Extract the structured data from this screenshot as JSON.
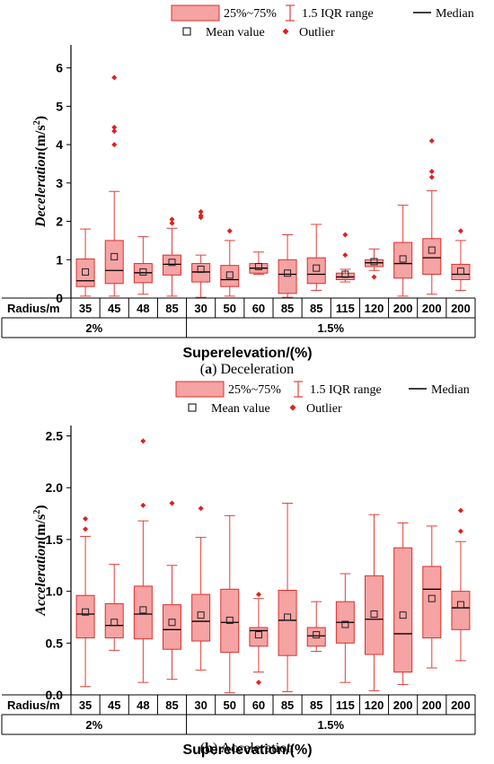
{
  "legend": {
    "box": "25%~75%",
    "iqr": "1.5 IQR range",
    "median": "Median",
    "mean": "Mean value",
    "outlier": "Outlier"
  },
  "colors": {
    "box_fill": "#f6a3a3",
    "box_stroke": "#d9302c",
    "whisker": "#e0403a",
    "outlier": "#e0201c",
    "median": "#000000"
  },
  "table": {
    "row_label": "Radius/m",
    "xlabel": "Superelevation/(%)"
  },
  "chart_data": [
    {
      "type": "box",
      "caption_letter": "a",
      "caption_text": "Deceleration",
      "ylabel_main": "Deceleration",
      "ylabel_unit": "(m/s",
      "ylabel_sup": "2",
      "ylabel_end": ")",
      "ylim": [
        0,
        6.6
      ],
      "yticks": [
        "0",
        "1",
        "2",
        "3",
        "4",
        "5",
        "6"
      ],
      "categories": [
        "35",
        "45",
        "48",
        "85",
        "30",
        "50",
        "60",
        "85",
        "85",
        "115",
        "120",
        "200",
        "200",
        "200"
      ],
      "groups": [
        {
          "label": "2%",
          "count": 4
        },
        {
          "label": "1.5%",
          "count": 10
        }
      ],
      "boxes": [
        {
          "min": 0.05,
          "q1": 0.3,
          "median": 0.45,
          "q3": 1.02,
          "max": 1.8,
          "mean": 0.68,
          "outliers": []
        },
        {
          "min": 0.05,
          "q1": 0.38,
          "median": 0.72,
          "q3": 1.5,
          "max": 2.78,
          "mean": 1.08,
          "outliers": [
            5.75,
            4.45,
            4.35,
            4.0
          ]
        },
        {
          "min": 0.1,
          "q1": 0.4,
          "median": 0.66,
          "q3": 0.9,
          "max": 1.6,
          "mean": 0.68,
          "outliers": []
        },
        {
          "min": 0.05,
          "q1": 0.6,
          "median": 0.88,
          "q3": 1.12,
          "max": 1.82,
          "mean": 0.93,
          "outliers": [
            2.05,
            1.95
          ]
        },
        {
          "min": 0.02,
          "q1": 0.42,
          "median": 0.68,
          "q3": 0.9,
          "max": 1.12,
          "mean": 0.75,
          "outliers": [
            2.25,
            2.15,
            2.1
          ]
        },
        {
          "min": 0.05,
          "q1": 0.3,
          "median": 0.48,
          "q3": 0.85,
          "max": 1.5,
          "mean": 0.6,
          "outliers": [
            1.75
          ]
        },
        {
          "min": 0.62,
          "q1": 0.65,
          "median": 0.78,
          "q3": 0.9,
          "max": 1.2,
          "mean": 0.82,
          "outliers": []
        },
        {
          "min": 0.02,
          "q1": 0.12,
          "median": 0.62,
          "q3": 1.0,
          "max": 1.65,
          "mean": 0.65,
          "outliers": []
        },
        {
          "min": 0.2,
          "q1": 0.38,
          "median": 0.62,
          "q3": 1.05,
          "max": 1.92,
          "mean": 0.78,
          "outliers": []
        },
        {
          "min": 0.42,
          "q1": 0.48,
          "median": 0.55,
          "q3": 0.65,
          "max": 0.75,
          "mean": 0.62,
          "outliers": [
            1.65,
            1.12
          ]
        },
        {
          "min": 0.72,
          "q1": 0.82,
          "median": 0.92,
          "q3": 1.0,
          "max": 1.28,
          "mean": 0.95,
          "outliers": [
            0.55
          ]
        },
        {
          "min": 0.05,
          "q1": 0.52,
          "median": 0.9,
          "q3": 1.45,
          "max": 2.42,
          "mean": 1.02,
          "outliers": []
        },
        {
          "min": 0.1,
          "q1": 0.62,
          "median": 1.05,
          "q3": 1.55,
          "max": 2.8,
          "mean": 1.25,
          "outliers": [
            4.1,
            3.3,
            3.15
          ]
        },
        {
          "min": 0.2,
          "q1": 0.48,
          "median": 0.62,
          "q3": 0.88,
          "max": 1.5,
          "mean": 0.7,
          "outliers": [
            1.75
          ]
        }
      ]
    },
    {
      "type": "box",
      "caption_letter": "b",
      "caption_text": "Acceleration",
      "ylabel_main": "Acceleration",
      "ylabel_unit": "(m/s",
      "ylabel_sup": "2",
      "ylabel_end": ")",
      "ylim": [
        0,
        2.6
      ],
      "yticks": [
        "0.0",
        "0.5",
        "1.0",
        "1.5",
        "2.0",
        "2.5"
      ],
      "categories": [
        "35",
        "45",
        "48",
        "85",
        "30",
        "50",
        "60",
        "85",
        "85",
        "115",
        "120",
        "200",
        "200",
        "200"
      ],
      "groups": [
        {
          "label": "2%",
          "count": 4
        },
        {
          "label": "1.5%",
          "count": 10
        }
      ],
      "boxes": [
        {
          "min": 0.08,
          "q1": 0.55,
          "median": 0.78,
          "q3": 0.96,
          "max": 1.53,
          "mean": 0.8,
          "outliers": [
            1.7,
            1.6
          ]
        },
        {
          "min": 0.43,
          "q1": 0.55,
          "median": 0.67,
          "q3": 0.88,
          "max": 1.26,
          "mean": 0.7,
          "outliers": []
        },
        {
          "min": 0.12,
          "q1": 0.54,
          "median": 0.78,
          "q3": 1.05,
          "max": 1.68,
          "mean": 0.82,
          "outliers": [
            2.45,
            1.83
          ]
        },
        {
          "min": 0.15,
          "q1": 0.44,
          "median": 0.63,
          "q3": 0.87,
          "max": 1.25,
          "mean": 0.7,
          "outliers": [
            1.85
          ]
        },
        {
          "min": 0.24,
          "q1": 0.52,
          "median": 0.71,
          "q3": 0.97,
          "max": 1.52,
          "mean": 0.77,
          "outliers": [
            1.8
          ]
        },
        {
          "min": 0.02,
          "q1": 0.41,
          "median": 0.7,
          "q3": 1.02,
          "max": 1.73,
          "mean": 0.72,
          "outliers": []
        },
        {
          "min": 0.22,
          "q1": 0.47,
          "median": 0.62,
          "q3": 0.65,
          "max": 0.93,
          "mean": 0.58,
          "outliers": [
            0.97,
            0.12
          ]
        },
        {
          "min": 0.03,
          "q1": 0.38,
          "median": 0.72,
          "q3": 1.01,
          "max": 1.85,
          "mean": 0.75,
          "outliers": []
        },
        {
          "min": 0.42,
          "q1": 0.47,
          "median": 0.57,
          "q3": 0.65,
          "max": 0.9,
          "mean": 0.58,
          "outliers": []
        },
        {
          "min": 0.12,
          "q1": 0.5,
          "median": 0.7,
          "q3": 0.9,
          "max": 1.17,
          "mean": 0.68,
          "outliers": []
        },
        {
          "min": 0.04,
          "q1": 0.39,
          "median": 0.73,
          "q3": 1.15,
          "max": 1.74,
          "mean": 0.78,
          "outliers": []
        },
        {
          "min": 0.1,
          "q1": 0.22,
          "median": 0.59,
          "q3": 1.42,
          "max": 1.66,
          "mean": 0.77,
          "outliers": []
        },
        {
          "min": 0.26,
          "q1": 0.55,
          "median": 1.02,
          "q3": 1.24,
          "max": 1.63,
          "mean": 0.93,
          "outliers": []
        },
        {
          "min": 0.33,
          "q1": 0.63,
          "median": 0.84,
          "q3": 1.0,
          "max": 1.48,
          "mean": 0.87,
          "outliers": [
            1.78,
            1.58
          ]
        }
      ]
    }
  ]
}
